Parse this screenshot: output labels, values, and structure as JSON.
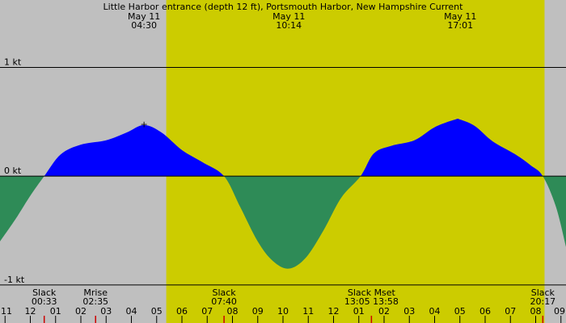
{
  "chart_data": {
    "type": "area",
    "title": "Little Harbor entrance (depth 12 ft), Portsmouth Harbor, New Hampshire Current",
    "header_events": [
      {
        "date": "May 11",
        "time": "04:30",
        "hour": 4.5
      },
      {
        "date": "May 11",
        "time": "10:14",
        "hour": 10.233
      },
      {
        "date": "May 11",
        "time": "17:01",
        "hour": 17.017
      }
    ],
    "y_ticks": [
      {
        "value": 1,
        "label": "1 kt"
      },
      {
        "value": 0,
        "label": "0 kt"
      },
      {
        "value": -1,
        "label": "-1 kt"
      }
    ],
    "ylim": [
      -1.35,
      1.62
    ],
    "xlim": [
      -1.2,
      21.2
    ],
    "x_ticks": [
      {
        "hour": -1,
        "label": "11"
      },
      {
        "hour": 0,
        "label": "12"
      },
      {
        "hour": 1,
        "label": "01"
      },
      {
        "hour": 2,
        "label": "02"
      },
      {
        "hour": 3,
        "label": "03"
      },
      {
        "hour": 4,
        "label": "04"
      },
      {
        "hour": 5,
        "label": "05"
      },
      {
        "hour": 6,
        "label": "06"
      },
      {
        "hour": 7,
        "label": "07"
      },
      {
        "hour": 8,
        "label": "08"
      },
      {
        "hour": 9,
        "label": "09"
      },
      {
        "hour": 10,
        "label": "10"
      },
      {
        "hour": 11,
        "label": "11"
      },
      {
        "hour": 12,
        "label": "12"
      },
      {
        "hour": 13,
        "label": "01"
      },
      {
        "hour": 14,
        "label": "02"
      },
      {
        "hour": 15,
        "label": "03"
      },
      {
        "hour": 16,
        "label": "04"
      },
      {
        "hour": 17,
        "label": "05"
      },
      {
        "hour": 18,
        "label": "06"
      },
      {
        "hour": 19,
        "label": "07"
      },
      {
        "hour": 20,
        "label": "08"
      },
      {
        "hour": 21,
        "label": "09"
      }
    ],
    "daylight": {
      "start_hour": 5.38,
      "end_hour": 20.35
    },
    "bottom_events": [
      {
        "label": "Slack",
        "time": "00:33",
        "hour": 0.55
      },
      {
        "label": "Mrise",
        "time": "02:35",
        "hour": 2.583
      },
      {
        "label": "Slack",
        "time": "07:40",
        "hour": 7.667
      },
      {
        "label": "Slack Mset",
        "time": "13:05 13:58",
        "hour": 13.5
      },
      {
        "label": "Slack",
        "time": "20:17",
        "hour": 20.283
      }
    ],
    "marker": {
      "hour": 4.5,
      "value": 0.48
    },
    "series": [
      {
        "x": [
          -1.2,
          -0.6,
          0,
          0.55,
          1.2,
          2,
          3,
          3.8,
          4.5,
          5.2,
          6,
          6.8,
          7.667,
          8.3,
          9,
          9.6,
          10.233,
          10.9,
          11.6,
          12.3,
          13.07,
          13.6,
          14.3,
          15.2,
          16,
          16.8,
          17.017,
          17.6,
          18.3,
          19.2,
          19.8,
          20.283,
          20.8,
          21.2
        ],
        "y": [
          -0.6,
          -0.4,
          -0.18,
          0,
          0.2,
          0.29,
          0.33,
          0.4,
          0.47,
          0.4,
          0.24,
          0.13,
          0,
          -0.28,
          -0.6,
          -0.78,
          -0.85,
          -0.75,
          -0.5,
          -0.2,
          0,
          0.21,
          0.28,
          0.33,
          0.45,
          0.52,
          0.52,
          0.46,
          0.32,
          0.2,
          0.1,
          0,
          -0.28,
          -0.65
        ]
      }
    ],
    "colors": {
      "night": "#bfbfbf",
      "day": "#cccc00",
      "flood": "#0000ff",
      "ebb": "#2e8b57",
      "grid": "#000000",
      "moon_tick": "#cc0000"
    }
  }
}
